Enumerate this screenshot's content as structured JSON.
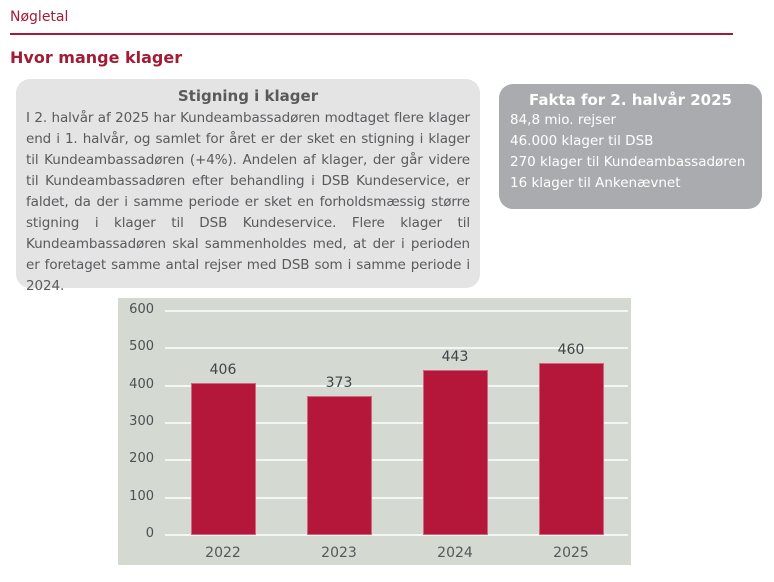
{
  "header": {
    "title": "Nøgletal"
  },
  "section": {
    "heading": "Hvor mange klager"
  },
  "info_box": {
    "title": "Stigning i klager",
    "text": "I 2. halvår af 2025 har Kundeambassadøren modtaget flere klager end i 1. halvår, og samlet for året er der sket en stigning i klager til Kundeambassadøren (+4%). Andelen af klager, der går videre til Kundeambassadøren efter behandling i DSB Kundeservice, er faldet, da der i samme periode er sket en forholdsmæssig større stigning i klager til DSB Kundeservice. Flere klager til Kundeambassadøren skal sammenholdes med, at der i perioden er foretaget samme antal rejser med DSB som i samme periode i 2024."
  },
  "fact_box": {
    "title": "Fakta for 2. halvår 2025",
    "lines": [
      "84,8 mio. rejser",
      "46.000 klager til DSB",
      "270 klager til Kundeambassadøren",
      "16 klager til Ankenævnet"
    ]
  },
  "chart_data": {
    "type": "bar",
    "categories": [
      "2022",
      "2023",
      "2024",
      "2025"
    ],
    "values": [
      406,
      373,
      443,
      460
    ],
    "ylim": [
      0,
      600
    ],
    "ytick_step": 100,
    "grid": true,
    "legend": false,
    "data_labels": true,
    "bar_color": "#b5173a",
    "plot_bg": "#d4d9d2",
    "grid_color": "#ffffff"
  },
  "colors": {
    "accent_red": "#a21c35",
    "info_box_bg": "#e4e4e5",
    "info_box_text": "#595a5c",
    "fact_box_bg": "#a9abae",
    "fact_box_text": "#ffffff",
    "chart_text": "#4c5052",
    "page_bg": "#ffffff"
  }
}
